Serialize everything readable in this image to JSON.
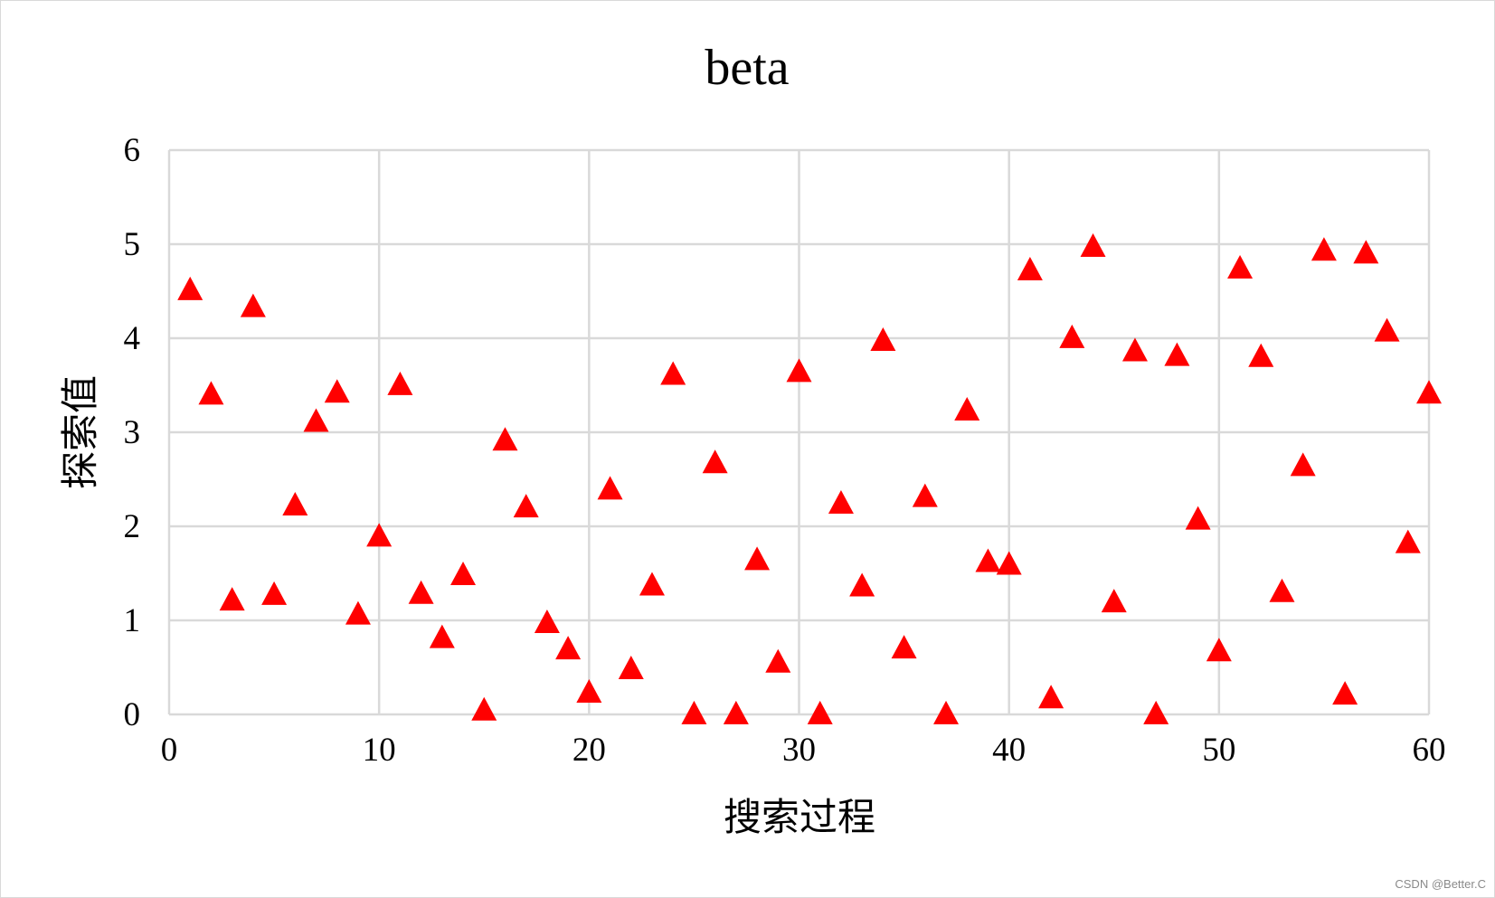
{
  "watermark": "CSDN @Better.C",
  "chart_data": {
    "type": "scatter",
    "title": "beta",
    "xlabel": "搜索过程",
    "ylabel": "探索值",
    "xlim": [
      0,
      60
    ],
    "ylim": [
      0,
      6
    ],
    "xticks": [
      0,
      10,
      20,
      30,
      40,
      50,
      60
    ],
    "yticks": [
      0,
      1,
      2,
      3,
      4,
      5,
      6
    ],
    "grid": true,
    "marker": "triangle",
    "marker_color": "#ff0000",
    "grid_color": "#d9d9d9",
    "series": [
      {
        "x": [
          1,
          2,
          3,
          4,
          5,
          6,
          7,
          8,
          9,
          10,
          11,
          12,
          13,
          14,
          15,
          16,
          17,
          18,
          19,
          20,
          21,
          22,
          23,
          24,
          25,
          26,
          27,
          28,
          29,
          30,
          31,
          32,
          33,
          34,
          35,
          36,
          37,
          38,
          39,
          40,
          41,
          42,
          43,
          44,
          45,
          46,
          47,
          48,
          49,
          50,
          51,
          52,
          53,
          54,
          55,
          56,
          57,
          58,
          59,
          60
        ],
        "y": [
          4.51,
          3.4,
          1.21,
          4.33,
          1.27,
          2.22,
          3.11,
          3.42,
          1.06,
          1.89,
          3.5,
          1.28,
          0.81,
          1.48,
          0.04,
          2.91,
          2.2,
          0.97,
          0.69,
          0.23,
          2.39,
          0.48,
          1.37,
          3.61,
          0.0,
          2.67,
          0.0,
          1.64,
          0.55,
          3.64,
          0.0,
          2.24,
          1.36,
          3.97,
          0.7,
          2.31,
          0.0,
          3.23,
          1.62,
          1.59,
          4.72,
          0.17,
          4.0,
          4.97,
          1.19,
          3.86,
          0.0,
          3.81,
          2.07,
          0.67,
          4.74,
          3.8,
          1.3,
          2.64,
          4.93,
          0.21,
          4.9,
          4.07,
          1.82,
          3.41
        ]
      }
    ]
  }
}
